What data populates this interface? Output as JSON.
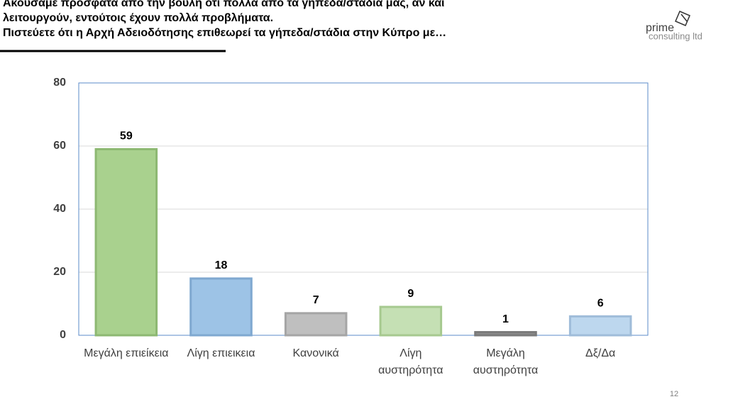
{
  "slide": {
    "title_lines": [
      "Ακούσαμε πρόσφατα από την βουλή ότι πολλά από τα γήπεδα/στάδια μας, αν και",
      "λειτουργούν, εντούτοις έχουν πολλά προβλήματα.",
      "Πιστεύετε ότι η Αρχή Αδειοδότησης επιθεωρεί τα γήπεδα/στάδια στην Κύπρο με…"
    ],
    "logo": {
      "name": "prime",
      "sub": "consulting ltd"
    },
    "page_number": "12"
  },
  "chart_data": {
    "type": "bar",
    "categories": [
      "Μεγάλη επιείκεια",
      "Λίγη επιεικεια",
      "Κανονικά",
      "Λίγη αυστηρότητα",
      "Μεγάλη αυστηρότητα",
      "Δξ/Δα"
    ],
    "values": [
      59,
      18,
      7,
      9,
      1,
      6
    ],
    "colors": [
      "#a9d18e",
      "#9dc3e6",
      "#bfbfbf",
      "#c5e0b4",
      "#8c8c8c",
      "#bdd7ee"
    ],
    "edge_colors": [
      "#8db872",
      "#7fa8d0",
      "#a5a5a5",
      "#a6c98f",
      "#7a7a7a",
      "#9fbcd9"
    ],
    "ylim": [
      0,
      80
    ],
    "yticks": [
      0,
      20,
      40,
      60,
      80
    ],
    "grid": true
  }
}
